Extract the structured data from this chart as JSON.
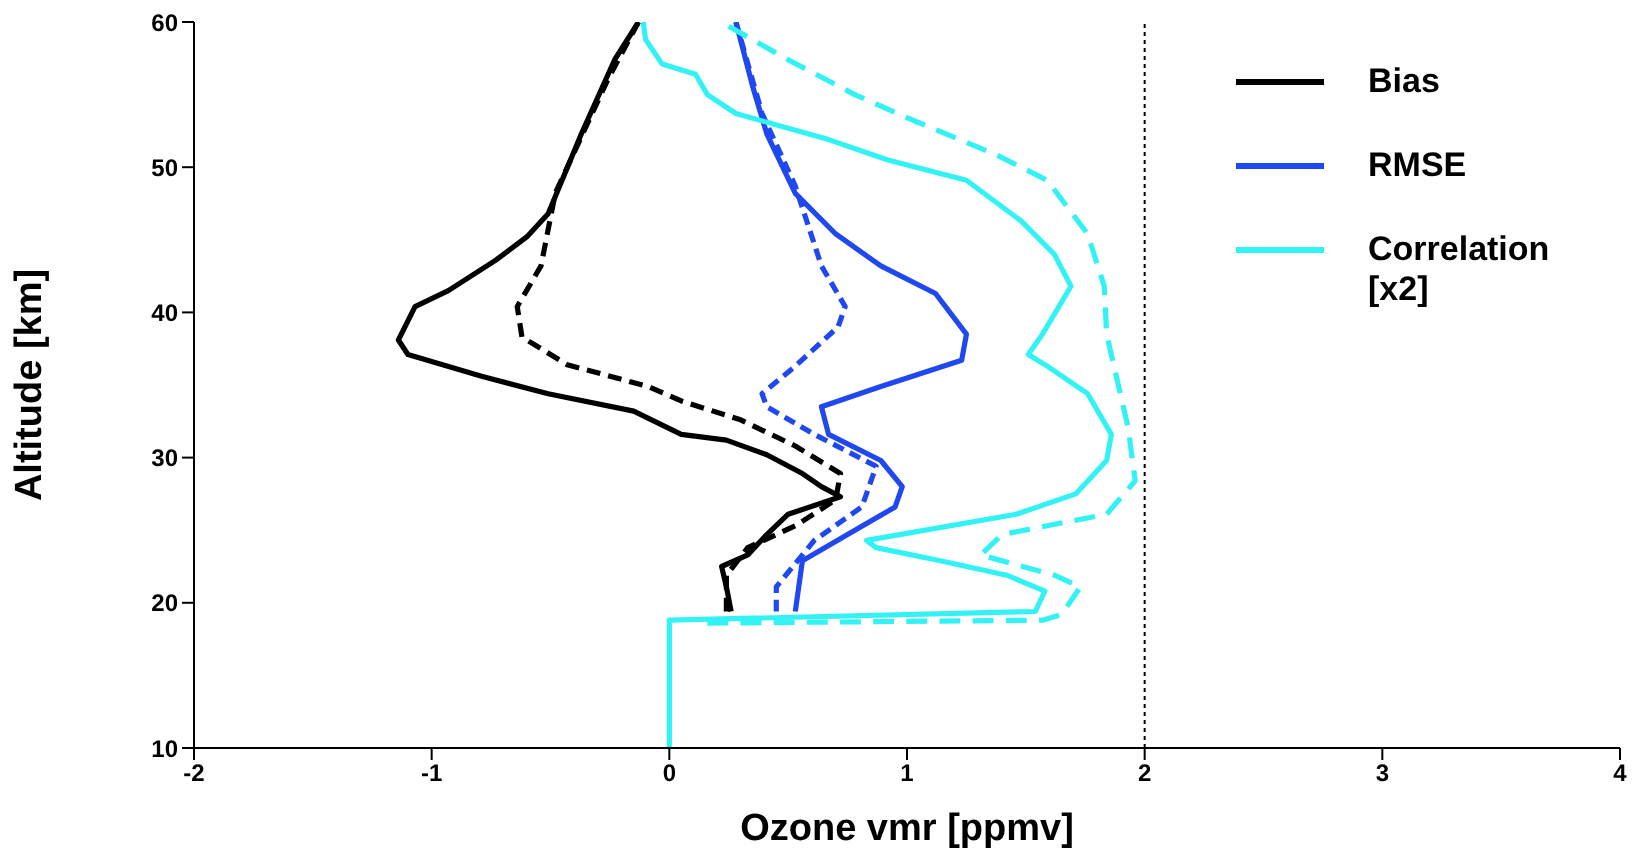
{
  "chart_data": {
    "type": "line",
    "xlabel": "Ozone vmr [ppmv]",
    "ylabel": "Altitude [km]",
    "xlim": [
      -2,
      4
    ],
    "xticks": [
      -2,
      -1,
      0,
      1,
      2,
      3,
      4
    ],
    "ylim": [
      10,
      60
    ],
    "yticks": [
      10,
      20,
      30,
      40,
      50,
      60
    ],
    "grid": false,
    "legend": "top right",
    "marker": "none",
    "series": [
      {
        "name": "Bias",
        "color": "#000000",
        "line_style": "solid",
        "x": [
          -0.13,
          -0.23,
          -0.37,
          -0.51,
          -0.6,
          -0.73,
          -0.93,
          -1.07,
          -1.14,
          -1.1,
          -0.79,
          -0.51,
          -0.15,
          0.05,
          0.24,
          0.41,
          0.56,
          0.64,
          0.72,
          0.5,
          0.41,
          0.33,
          0.22,
          0.24,
          0.26
        ],
        "values": [
          60,
          57.4,
          52.3,
          46.8,
          45.2,
          43.6,
          41.5,
          40.4,
          38.1,
          37.1,
          35.6,
          34.4,
          33.2,
          31.6,
          31.2,
          30.2,
          28.9,
          28,
          27.3,
          26.1,
          24.7,
          23.3,
          22.5,
          21.1,
          19.4
        ]
      },
      {
        "color": "#000000",
        "line_style": "dashed",
        "x": [
          -0.13,
          -0.26,
          -0.48,
          -0.54,
          -0.64,
          -0.62,
          -0.43,
          -0.09,
          0.05,
          0.3,
          0.53,
          0.72,
          0.7,
          0.53,
          0.33,
          0.24,
          0.24
        ],
        "values": [
          60,
          56,
          48.2,
          43.2,
          40.4,
          38.3,
          36.4,
          34.9,
          33.9,
          32.6,
          30.8,
          28.9,
          27.1,
          25.3,
          23.8,
          21.9,
          19.4
        ]
      },
      {
        "name": "RMSE",
        "color": "#1f48f0",
        "line_style": "solid",
        "x": [
          0.28,
          0.35,
          0.41,
          0.53,
          0.7,
          0.89,
          1.12,
          1.25,
          1.23,
          0.89,
          0.64,
          0.67,
          0.89,
          0.98,
          0.95,
          0.75,
          0.56,
          0.53
        ],
        "values": [
          60,
          55.6,
          52.3,
          48.2,
          45.4,
          43.2,
          41.3,
          38.5,
          36.7,
          34.9,
          33.5,
          31.6,
          29.8,
          28,
          26.6,
          24.7,
          22.9,
          19.4
        ]
      },
      {
        "color": "#1f48f0",
        "line_style": "dashed",
        "x": [
          0.28,
          0.39,
          0.53,
          0.64,
          0.74,
          0.71,
          0.53,
          0.39,
          0.41,
          0.61,
          0.87,
          0.81,
          0.61,
          0.45,
          0.45
        ],
        "values": [
          60,
          53.7,
          48.7,
          43.2,
          40.4,
          39,
          36.3,
          34.4,
          33.5,
          31.6,
          29.4,
          26.6,
          24.3,
          21.1,
          19.4
        ]
      },
      {
        "name": "Correlation [x2]",
        "color": "#33f2f5",
        "line_style": "solid",
        "x": [
          0,
          0,
          1.54,
          1.58,
          1.42,
          1.14,
          0.87,
          0.83,
          1.46,
          1.71,
          1.84,
          1.86,
          1.76,
          1.59,
          1.51,
          1.57,
          1.69,
          1.62,
          1.48,
          1.25,
          0.92,
          0.67,
          0.28,
          0.16,
          0.11,
          -0.03,
          -0.1,
          -0.11
        ],
        "values": [
          10,
          18.8,
          19.4,
          20.8,
          21.9,
          22.9,
          23.8,
          24.3,
          26.1,
          27.5,
          29.8,
          31.6,
          34.4,
          36.3,
          37.1,
          38.5,
          41.8,
          44,
          46.3,
          49.1,
          50.5,
          51.9,
          53.7,
          55,
          56.4,
          57.1,
          58.8,
          60
        ]
      },
      {
        "color": "#33f2f5",
        "line_style": "dashed",
        "x": [
          0.16,
          1.57,
          1.65,
          1.73,
          1.62,
          1.31,
          1.4,
          1.84,
          1.96,
          1.93,
          1.84,
          1.83,
          1.76,
          1.59,
          1.37,
          1.03,
          0.78,
          0.5,
          0.25
        ],
        "values": [
          18.6,
          18.8,
          19.2,
          21.1,
          21.9,
          23.3,
          24.7,
          26.1,
          28.4,
          32.1,
          38.5,
          41.8,
          45.4,
          49.1,
          50.9,
          53.2,
          55,
          57.4,
          59.7
        ]
      }
    ],
    "ref_lines": [
      {
        "axis": "x",
        "value": 2,
        "color": "#000000",
        "line_style": "dotted"
      }
    ]
  }
}
